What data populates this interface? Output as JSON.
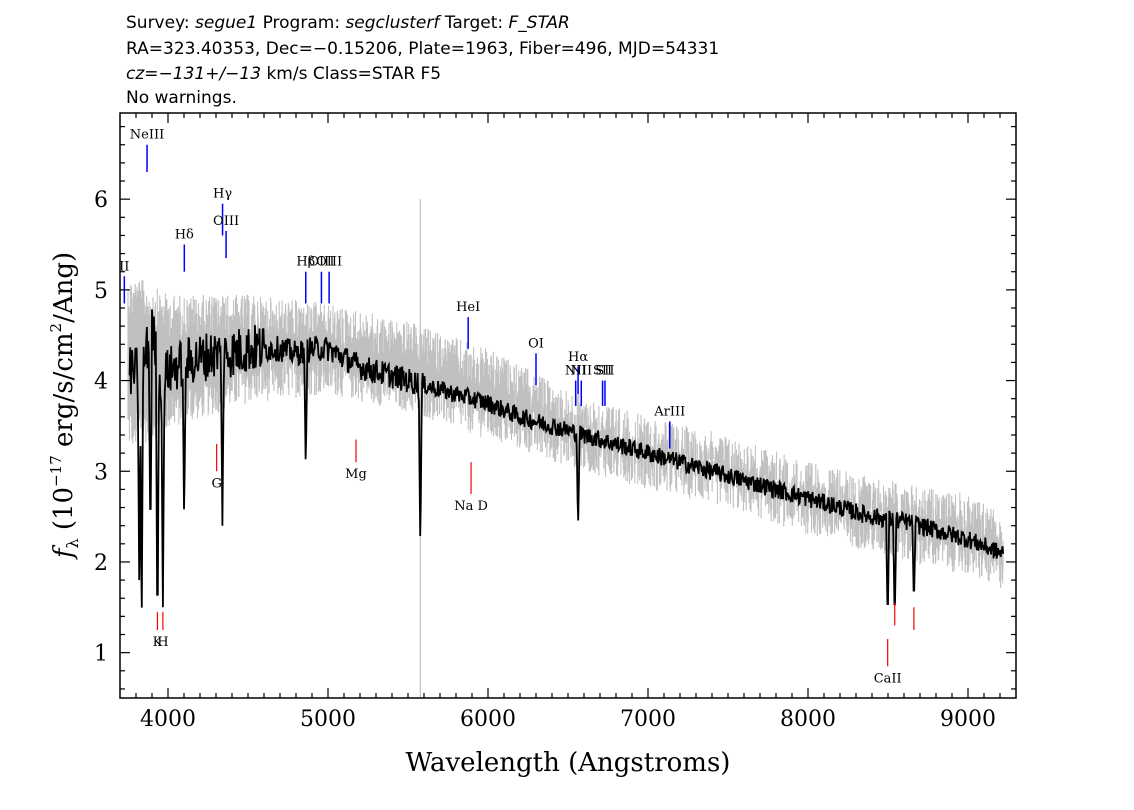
{
  "header": {
    "line1": [
      {
        "t": "Survey: ",
        "i": false
      },
      {
        "t": "segue1",
        "i": true
      },
      {
        "t": " Program: ",
        "i": false
      },
      {
        "t": "segclusterf",
        "i": true
      },
      {
        "t": " Target: ",
        "i": false
      },
      {
        "t": "F_STAR",
        "i": true
      }
    ],
    "line2": "RA=323.40353, Dec=−0.15206, Plate=1963, Fiber=496, MJD=54331",
    "line3": [
      {
        "t": "cz=−131+/−13",
        "i": true
      },
      {
        "t": " km/s Class=STAR F5",
        "i": false
      }
    ],
    "line4": "No warnings."
  },
  "chart_data": {
    "type": "line",
    "xlabel": "Wavelength (Angstroms)",
    "ylabel": "fλ (10⁻¹⁷ erg/s/cm²/Ang)",
    "xlim": [
      3700,
      9300
    ],
    "ylim": [
      0.5,
      6.95
    ],
    "xticks": [
      4000,
      5000,
      6000,
      7000,
      8000,
      9000
    ],
    "yticks": [
      1,
      2,
      3,
      4,
      5,
      6
    ],
    "grid": false,
    "series": [
      {
        "role": "flux",
        "color": "#000000",
        "x": [
          3800,
          3850,
          3900,
          3950,
          4000,
          4100,
          4200,
          4300,
          4400,
          4500,
          4600,
          4700,
          4800,
          4900,
          5000,
          5100,
          5200,
          5400,
          5600,
          5800,
          6000,
          6200,
          6400,
          6600,
          6800,
          7000,
          7200,
          7400,
          7600,
          7800,
          8000,
          8200,
          8400,
          8600,
          8800,
          9000,
          9200
        ],
        "y": [
          4.1,
          4.2,
          4.6,
          4.0,
          4.1,
          4.2,
          4.25,
          4.3,
          4.3,
          4.35,
          4.35,
          4.35,
          4.3,
          4.35,
          4.35,
          4.25,
          4.15,
          4.05,
          3.95,
          3.85,
          3.75,
          3.6,
          3.5,
          3.4,
          3.3,
          3.2,
          3.1,
          3.0,
          2.9,
          2.8,
          2.7,
          2.6,
          2.5,
          2.45,
          2.35,
          2.25,
          2.1
        ]
      },
      {
        "role": "error-envelope",
        "color": "#c0c0c0",
        "x": [
          3800,
          4000,
          4500,
          5000,
          5500,
          6000,
          6500,
          7000,
          7500,
          8000,
          8500,
          9000,
          9200
        ],
        "lower": [
          3.4,
          3.6,
          3.9,
          4.0,
          3.8,
          3.5,
          3.2,
          2.95,
          2.75,
          2.45,
          2.2,
          2.0,
          1.85
        ],
        "upper": [
          5.0,
          4.8,
          4.8,
          4.7,
          4.5,
          4.2,
          3.75,
          3.45,
          3.25,
          2.95,
          2.75,
          2.6,
          2.4
        ]
      }
    ],
    "absorption_dips": [
      {
        "x": 3820,
        "y": 1.8
      },
      {
        "x": 3835,
        "y": 1.2
      },
      {
        "x": 3890,
        "y": 2.1
      },
      {
        "x": 3934,
        "y": 1.0
      },
      {
        "x": 3968,
        "y": 1.5
      },
      {
        "x": 4101,
        "y": 2.4
      },
      {
        "x": 4340,
        "y": 2.4
      },
      {
        "x": 4861,
        "y": 3.0
      },
      {
        "x": 5577,
        "y": 2.1
      },
      {
        "x": 6563,
        "y": 2.35
      },
      {
        "x": 8498,
        "y": 1.3
      },
      {
        "x": 8542,
        "y": 1.3
      },
      {
        "x": 8662,
        "y": 1.5
      }
    ],
    "emission_lines": [
      {
        "label": "NeIII",
        "x": 3869,
        "y0": 6.3,
        "y1": 6.6
      },
      {
        "label": "Hδ",
        "x": 4102,
        "y0": 5.2,
        "y1": 5.5
      },
      {
        "label": "Hγ",
        "x": 4341,
        "y0": 5.6,
        "y1": 5.95
      },
      {
        "label": "OIII",
        "x": 4363,
        "y0": 5.35,
        "y1": 5.65
      },
      {
        "label": "Hβ",
        "x": 4861,
        "y0": 4.85,
        "y1": 5.2
      },
      {
        "label": "OIII",
        "x": 4959,
        "y0": 4.85,
        "y1": 5.2
      },
      {
        "label": "OIII",
        "x": 5007,
        "y0": 4.85,
        "y1": 5.2
      },
      {
        "label": "HeI",
        "x": 5876,
        "y0": 4.35,
        "y1": 4.7
      },
      {
        "label": "OI",
        "x": 6300,
        "y0": 3.95,
        "y1": 4.3
      },
      {
        "label": "NII",
        "x": 6548,
        "y0": 3.72,
        "y1": 4.0
      },
      {
        "label": "Hα",
        "x": 6563,
        "y0": 3.85,
        "y1": 4.15
      },
      {
        "label": "NII",
        "x": 6583,
        "y0": 3.72,
        "y1": 4.0
      },
      {
        "label": "SII",
        "x": 6716,
        "y0": 3.72,
        "y1": 4.0
      },
      {
        "label": "SII",
        "x": 6731,
        "y0": 3.72,
        "y1": 4.0
      },
      {
        "label": "ArIII",
        "x": 7136,
        "y0": 3.25,
        "y1": 3.55
      },
      {
        "label": "II",
        "x": 3727,
        "y0": 4.85,
        "y1": 5.15
      }
    ],
    "absorption_lines": [
      {
        "label": "K",
        "x": 3934,
        "y0": 1.25,
        "y1": 1.45
      },
      {
        "label": "H",
        "x": 3968,
        "y0": 1.25,
        "y1": 1.45
      },
      {
        "label": "G",
        "x": 4304,
        "y0": 3.0,
        "y1": 3.3
      },
      {
        "label": "Mg",
        "x": 5175,
        "y0": 3.1,
        "y1": 3.35
      },
      {
        "label": "Na D",
        "x": 5894,
        "y0": 2.75,
        "y1": 3.1
      },
      {
        "label": "CaII",
        "x": 8498,
        "y0": 0.85,
        "y1": 1.15
      },
      {
        "label": "",
        "x": 8542,
        "y0": 1.3,
        "y1": 1.55
      },
      {
        "label": "",
        "x": 8662,
        "y0": 1.25,
        "y1": 1.5
      }
    ]
  }
}
